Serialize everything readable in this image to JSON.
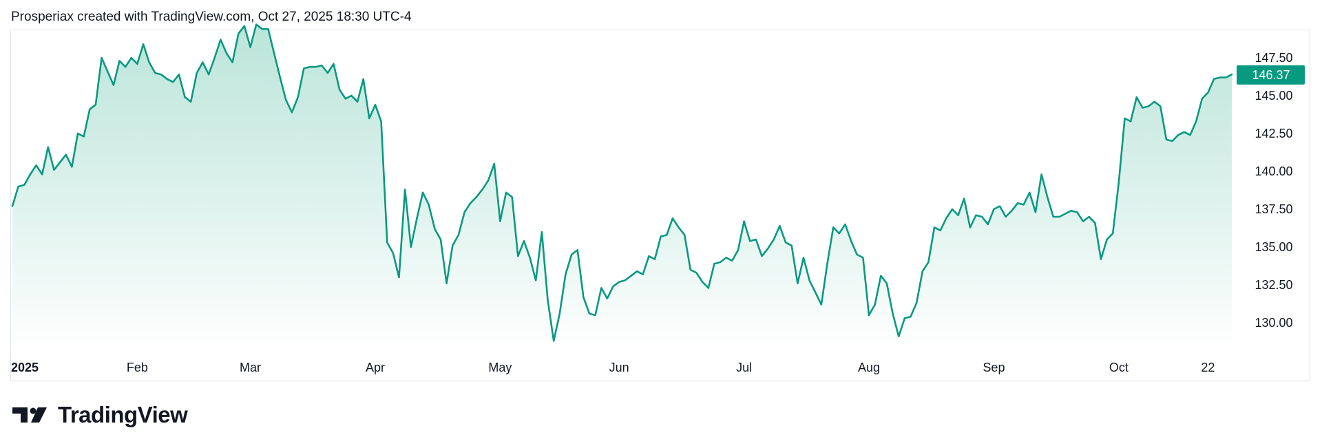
{
  "header": {
    "caption": "Prosperiax created with TradingView.com, Oct 27, 2025 18:30 UTC-4"
  },
  "branding": {
    "logo_text": "TradingView"
  },
  "colors": {
    "line": "#089981",
    "last_price_bg": "#089981",
    "fill_top": "#b7e3d7",
    "fill_bottom": "#ffffff"
  },
  "chart_data": {
    "type": "area",
    "title": "",
    "xlabel": "",
    "ylabel": "",
    "ylim": [
      128.5,
      149.5
    ],
    "y_ticks": [
      "130.00",
      "132.50",
      "135.00",
      "137.50",
      "140.00",
      "142.50",
      "145.00",
      "147.50"
    ],
    "x_ticks": [
      {
        "label": "2025",
        "bold": true,
        "index": 0
      },
      {
        "label": "Feb",
        "index": 21
      },
      {
        "label": "Mar",
        "index": 40
      },
      {
        "label": "Apr",
        "index": 61
      },
      {
        "label": "May",
        "index": 82
      },
      {
        "label": "Jun",
        "index": 102
      },
      {
        "label": "Jul",
        "index": 123
      },
      {
        "label": "Aug",
        "index": 144
      },
      {
        "label": "Sep",
        "index": 165
      },
      {
        "label": "Oct",
        "index": 186
      },
      {
        "label": "22",
        "index": 201
      }
    ],
    "last_price": "146.37",
    "series": [
      {
        "values": [
          137.7,
          139.0,
          139.1,
          139.8,
          140.4,
          139.8,
          141.6,
          140.1,
          140.6,
          141.1,
          140.3,
          142.5,
          142.3,
          144.1,
          144.4,
          147.5,
          146.6,
          145.7,
          147.3,
          146.9,
          147.5,
          147.1,
          148.4,
          147.2,
          146.5,
          146.4,
          146.1,
          145.9,
          146.4,
          144.9,
          144.6,
          146.5,
          147.2,
          146.4,
          147.5,
          148.7,
          147.8,
          147.2,
          149.1,
          149.6,
          148.2,
          149.7,
          149.4,
          149.4,
          147.8,
          146.2,
          144.7,
          143.9,
          144.9,
          146.8,
          146.9,
          146.9,
          147.0,
          146.5,
          147.1,
          145.4,
          144.8,
          145.0,
          144.6,
          146.1,
          143.5,
          144.4,
          143.3,
          135.3,
          134.6,
          133.0,
          138.8,
          135.0,
          136.9,
          138.6,
          137.8,
          136.2,
          135.5,
          132.6,
          135.1,
          135.8,
          137.3,
          137.9,
          138.3,
          138.8,
          139.4,
          140.5,
          136.7,
          138.6,
          138.3,
          134.4,
          135.4,
          134.3,
          132.8,
          136.0,
          131.5,
          128.8,
          130.6,
          133.2,
          134.5,
          134.8,
          131.7,
          130.6,
          130.5,
          132.3,
          131.6,
          132.4,
          132.7,
          132.8,
          133.1,
          133.4,
          133.2,
          134.4,
          134.2,
          135.7,
          135.8,
          136.9,
          136.3,
          135.8,
          133.5,
          133.3,
          132.7,
          132.3,
          133.9,
          134.0,
          134.3,
          134.1,
          134.8,
          136.7,
          135.4,
          135.5,
          134.4,
          134.9,
          135.5,
          136.4,
          135.3,
          135.1,
          132.6,
          134.3,
          132.8,
          132.0,
          131.2,
          133.9,
          136.3,
          135.9,
          136.5,
          135.4,
          134.5,
          134.3,
          130.5,
          131.2,
          133.1,
          132.6,
          130.6,
          129.1,
          130.3,
          130.4,
          131.3,
          133.4,
          134.0,
          136.3,
          136.1,
          136.9,
          137.5,
          137.1,
          138.2,
          136.3,
          137.1,
          137.0,
          136.5,
          137.5,
          137.7,
          137.0,
          137.4,
          137.9,
          137.8,
          138.6,
          137.3,
          139.8,
          138.3,
          137.0,
          137.0,
          137.2,
          137.4,
          137.3,
          136.7,
          137.0,
          136.6,
          134.2,
          135.5,
          135.9,
          139.3,
          143.5,
          143.3,
          144.9,
          144.2,
          144.3,
          144.6,
          144.3,
          142.1,
          142.0,
          142.4,
          142.6,
          142.4,
          143.3,
          144.8,
          145.2,
          146.1,
          146.2,
          146.2,
          146.4
        ]
      }
    ]
  }
}
